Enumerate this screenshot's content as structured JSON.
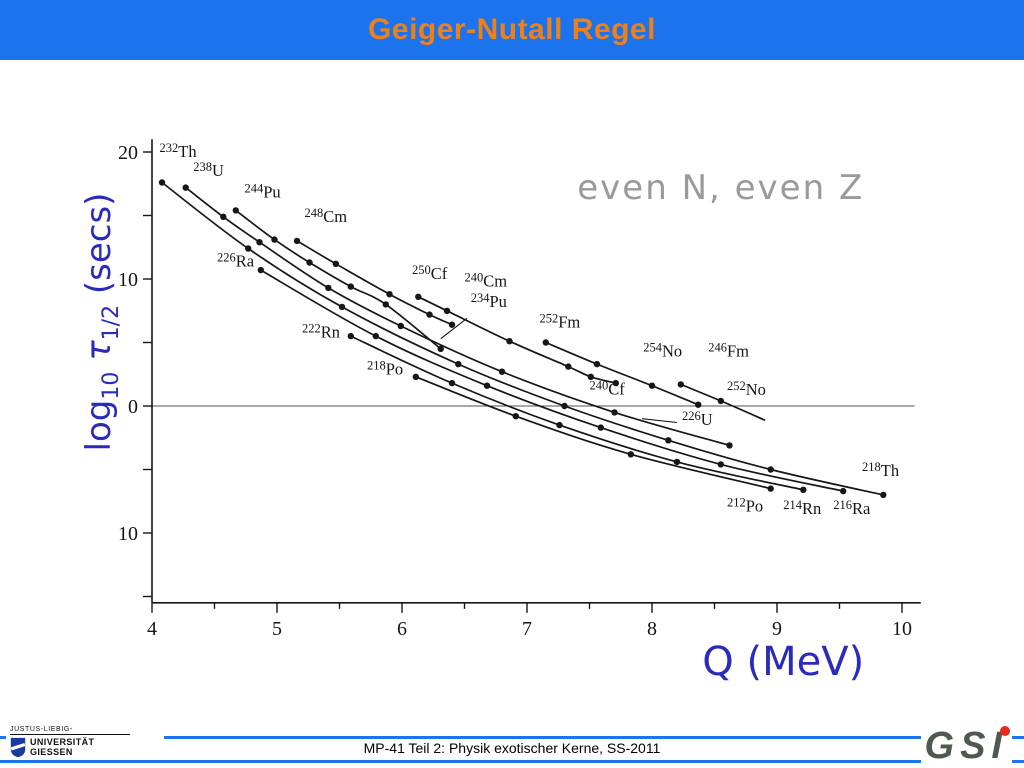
{
  "slide": {
    "title": "Geiger-Nutall Regel",
    "footer": "MP-41 Teil 2: Physik exotischer Kerne, SS-2011",
    "colors": {
      "header_blue": "#1b73ee",
      "title_orange": "#ee8019",
      "axis_blue": "#2b2bbb",
      "annotation_gray": "#9a9a9a",
      "ink": "#161616",
      "gsi_green": "#4e5a50",
      "gsi_red": "#e8291d",
      "uni_blue": "#1a3a9e"
    },
    "logos": {
      "uni_line1": "JUSTUS-LIEBIG-",
      "uni_line2": "UNIVERSITÄT",
      "uni_line3": "GIESSEN",
      "gsi": "GSI"
    }
  },
  "chart_data": {
    "type": "line",
    "title": "",
    "annotation": "even N, even Z",
    "xlabel": "Q (MeV)",
    "ylabel": "log10 τ1/2 (secs)",
    "ylabel_segments": [
      {
        "t": "log"
      },
      {
        "t": "10",
        "sub": true
      },
      {
        "t": " τ",
        "italic": true
      },
      {
        "t": "1/2",
        "sub": true
      },
      {
        "t": " (secs)"
      }
    ],
    "xlim": [
      4,
      10.15
    ],
    "ylim": [
      -15.5,
      21
    ],
    "x_ticks": [
      4,
      5,
      6,
      7,
      8,
      9,
      10
    ],
    "x_minor_step": 0.5,
    "y_major_ticks": [
      20,
      15,
      10,
      5,
      0,
      -5,
      -10,
      -15
    ],
    "y_labeled_ticks": [
      {
        "value": 20,
        "label": "20"
      },
      {
        "value": 10,
        "label": "10"
      },
      {
        "value": 0,
        "label": "0"
      },
      {
        "value": -10,
        "label": "10"
      }
    ],
    "zero_line": 0,
    "grid": false,
    "series": [
      {
        "name": "Th isotopes",
        "points": [
          [
            4.08,
            17.6
          ],
          [
            4.77,
            12.4
          ],
          [
            5.52,
            7.8
          ],
          [
            6.45,
            3.3
          ],
          [
            7.3,
            0.0
          ],
          [
            8.13,
            -2.7
          ],
          [
            8.95,
            -5.0
          ],
          [
            9.85,
            -7.0
          ]
        ]
      },
      {
        "name": "U isotopes",
        "points": [
          [
            4.27,
            17.2
          ],
          [
            4.57,
            14.9
          ],
          [
            4.86,
            12.9
          ],
          [
            5.41,
            9.3
          ],
          [
            5.99,
            6.3
          ],
          [
            6.8,
            2.7
          ],
          [
            7.7,
            -0.5
          ],
          [
            8.62,
            -3.1
          ]
        ]
      },
      {
        "name": "Pu isotopes",
        "points": [
          [
            4.67,
            15.4
          ],
          [
            4.98,
            13.1
          ],
          [
            5.26,
            11.3
          ],
          [
            5.59,
            9.4
          ],
          [
            5.87,
            8.0
          ],
          [
            6.31,
            4.5
          ]
        ]
      },
      {
        "name": "Cm isotopes",
        "points": [
          [
            5.16,
            13.0
          ],
          [
            5.47,
            11.2
          ],
          [
            5.9,
            8.8
          ],
          [
            6.22,
            7.2
          ],
          [
            6.4,
            6.4
          ]
        ]
      },
      {
        "name": "Cf isotopes",
        "points": [
          [
            6.13,
            8.6
          ],
          [
            6.36,
            7.5
          ],
          [
            6.86,
            5.1
          ],
          [
            7.33,
            3.1
          ],
          [
            7.51,
            2.3
          ],
          [
            7.71,
            1.8
          ]
        ]
      },
      {
        "name": "Fm isotopes",
        "points": [
          [
            7.15,
            5.0
          ],
          [
            7.56,
            3.3
          ],
          [
            8.0,
            1.6
          ],
          [
            8.37,
            0.1
          ]
        ]
      },
      {
        "name": "No isotopes",
        "points": [
          [
            8.23,
            1.7
          ],
          [
            8.55,
            0.4
          ],
          [
            8.9,
            -1.1
          ]
        ],
        "dots": 2
      },
      {
        "name": "Ra isotopes",
        "points": [
          [
            4.87,
            10.7
          ],
          [
            5.79,
            5.5
          ],
          [
            6.68,
            1.6
          ],
          [
            7.59,
            -1.7
          ],
          [
            8.55,
            -4.6
          ],
          [
            9.53,
            -6.7
          ]
        ]
      },
      {
        "name": "Rn isotopes",
        "points": [
          [
            5.59,
            5.5
          ],
          [
            6.4,
            1.8
          ],
          [
            7.26,
            -1.5
          ],
          [
            8.2,
            -4.4
          ],
          [
            9.21,
            -6.6
          ]
        ]
      },
      {
        "name": "Po isotopes",
        "points": [
          [
            6.11,
            2.3
          ],
          [
            6.91,
            -0.8
          ],
          [
            7.83,
            -3.8
          ],
          [
            8.95,
            -6.5
          ]
        ]
      }
    ],
    "labels": [
      {
        "mass": "232",
        "el": "Th",
        "x": 4.06,
        "y": 19.6
      },
      {
        "mass": "238",
        "el": "U",
        "x": 4.33,
        "y": 18.1
      },
      {
        "mass": "244",
        "el": "Pu",
        "x": 4.74,
        "y": 16.4
      },
      {
        "mass": "248",
        "el": "Cm",
        "x": 5.22,
        "y": 14.5
      },
      {
        "mass": "226",
        "el": "Ra",
        "x": 4.52,
        "y": 11.0
      },
      {
        "mass": "250",
        "el": "Cf",
        "x": 6.08,
        "y": 10.0
      },
      {
        "mass": "240",
        "el": "Cm",
        "x": 6.5,
        "y": 9.4
      },
      {
        "mass": "234",
        "el": "Pu",
        "x": 6.55,
        "y": 7.8,
        "leader": [
          6.52,
          6.9,
          6.31,
          5.3
        ]
      },
      {
        "mass": "222",
        "el": "Rn",
        "x": 5.2,
        "y": 5.4
      },
      {
        "mass": "218",
        "el": "Po",
        "x": 5.72,
        "y": 2.5
      },
      {
        "mass": "252",
        "el": "Fm",
        "x": 7.1,
        "y": 6.2
      },
      {
        "mass": "254",
        "el": "No",
        "x": 7.93,
        "y": 3.9
      },
      {
        "mass": "246",
        "el": "Fm",
        "x": 8.45,
        "y": 3.9
      },
      {
        "mass": "240",
        "el": "Cf",
        "x": 7.5,
        "y": 0.9
      },
      {
        "mass": "252",
        "el": "No",
        "x": 8.6,
        "y": 0.85
      },
      {
        "mass": "226",
        "el": "U",
        "x": 8.24,
        "y": -1.5,
        "leader": [
          8.2,
          -1.3,
          7.92,
          -1.0
        ]
      },
      {
        "mass": "218",
        "el": "Th",
        "x": 9.68,
        "y": -5.5
      },
      {
        "mass": "212",
        "el": "Po",
        "x": 8.6,
        "y": -8.3
      },
      {
        "mass": "214",
        "el": "Rn",
        "x": 9.05,
        "y": -8.5
      },
      {
        "mass": "216",
        "el": "Ra",
        "x": 9.45,
        "y": -8.5
      }
    ]
  }
}
